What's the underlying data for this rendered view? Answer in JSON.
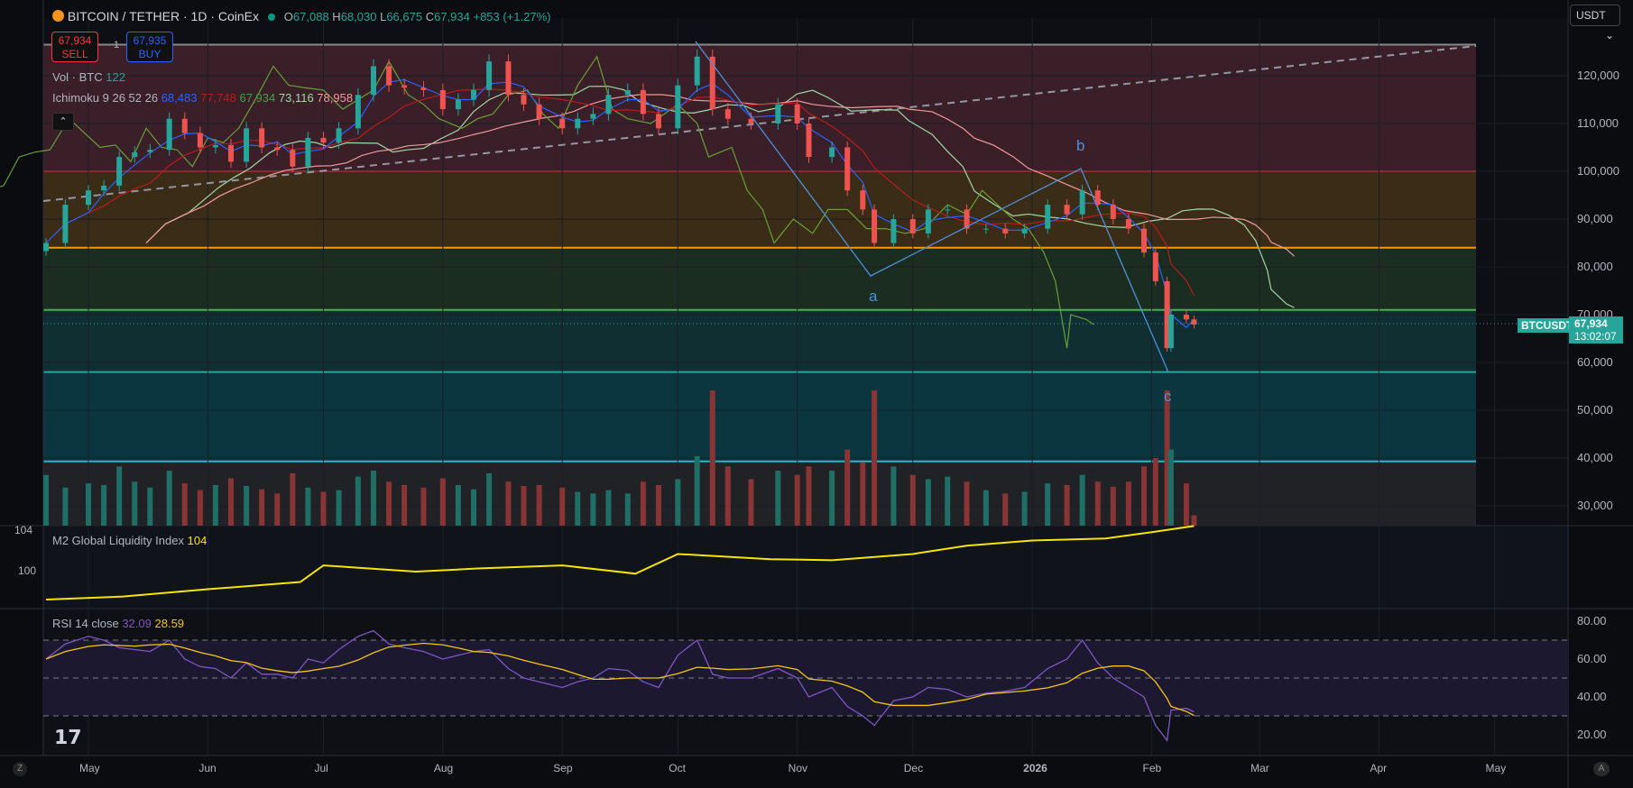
{
  "header": {
    "symbol": "BITCOIN / TETHER · 1D · CoinEx",
    "open_label": "O",
    "open": "67,088",
    "high_label": "H",
    "high": "68,030",
    "low_label": "L",
    "low": "66,675",
    "close_label": "C",
    "close": "67,934",
    "change": "+853 (+1.27%)"
  },
  "trade": {
    "sell_price": "67,934",
    "sell_label": "SELL",
    "spread": "1",
    "buy_price": "67,935",
    "buy_label": "BUY"
  },
  "legend": {
    "vol_label": "Vol · BTC",
    "vol_value": "122",
    "ichimoku_label": "Ichimoku 9 26 52 26",
    "ichi_values": [
      "68,483",
      "77,748",
      "67,934",
      "73,116",
      "78,958"
    ],
    "m2_label": "M2 Global Liquidity Index",
    "m2_value": "104",
    "rsi_label": "RSI 14 close",
    "rsi_value": "32.09",
    "rsi_ma_value": "28.59"
  },
  "currency": "USDT",
  "price_tag": {
    "symbol": "BTCUSDT",
    "price": "67,934",
    "countdown": "13:02:07"
  },
  "waves": [
    "a",
    "b",
    "c"
  ],
  "colors": {
    "up": "#26a69a",
    "down": "#ef5350",
    "m2": "#f5e50a",
    "rsi": "#7e57c2",
    "rsi_ma": "#f5c518",
    "conversion": "#2962ff",
    "base": "#b71c1c",
    "wave_lines": "#4f8fd6"
  },
  "chart_data": [
    {
      "type": "candlestick",
      "title": "BITCOIN / TETHER · 1D · CoinEx",
      "y_ticks": [
        "120,000",
        "110,000",
        "100,000",
        "90,000",
        "80,000",
        "70,000",
        "60,000",
        "50,000",
        "40,000",
        "30,000"
      ],
      "x_ticks": [
        "May",
        "Jun",
        "Jul",
        "Aug",
        "Sep",
        "Oct",
        "Nov",
        "Dec",
        "2026",
        "Feb",
        "Mar",
        "Apr",
        "May"
      ],
      "x_tick_dates": [
        "2025-05-01",
        "2025-06-01",
        "2025-07-01",
        "2025-08-01",
        "2025-09-01",
        "2025-10-01",
        "2025-11-01",
        "2025-12-01",
        "2026-01-01",
        "2026-02-01",
        "2026-03-01",
        "2026-04-01",
        "2026-05-01"
      ],
      "dates": [
        "2025-04-20",
        "2025-04-25",
        "2025-05-01",
        "2025-05-05",
        "2025-05-09",
        "2025-05-13",
        "2025-05-17",
        "2025-05-22",
        "2025-05-26",
        "2025-05-30",
        "2025-06-03",
        "2025-06-07",
        "2025-06-11",
        "2025-06-15",
        "2025-06-19",
        "2025-06-23",
        "2025-06-27",
        "2025-07-01",
        "2025-07-05",
        "2025-07-10",
        "2025-07-14",
        "2025-07-18",
        "2025-07-22",
        "2025-07-27",
        "2025-08-01",
        "2025-08-05",
        "2025-08-09",
        "2025-08-13",
        "2025-08-18",
        "2025-08-22",
        "2025-08-26",
        "2025-09-01",
        "2025-09-05",
        "2025-09-09",
        "2025-09-13",
        "2025-09-18",
        "2025-09-22",
        "2025-09-26",
        "2025-10-01",
        "2025-10-06",
        "2025-10-10",
        "2025-10-14",
        "2025-10-20",
        "2025-10-27",
        "2025-11-01",
        "2025-11-04",
        "2025-11-10",
        "2025-11-14",
        "2025-11-18",
        "2025-11-21",
        "2025-11-26",
        "2025-12-01",
        "2025-12-05",
        "2025-12-10",
        "2025-12-15",
        "2025-12-20",
        "2025-12-25",
        "2025-12-30",
        "2026-01-05",
        "2026-01-10",
        "2026-01-14",
        "2026-01-18",
        "2026-01-22",
        "2026-01-26",
        "2026-01-30",
        "2026-02-02",
        "2026-02-05",
        "2026-02-06",
        "2026-02-10",
        "2026-02-12"
      ],
      "close": [
        85000,
        93000,
        96000,
        97000,
        103000,
        104000,
        104500,
        111000,
        108000,
        105000,
        105500,
        102000,
        109000,
        105000,
        104500,
        101000,
        107000,
        106000,
        109000,
        116000,
        122000,
        118000,
        117500,
        117000,
        113000,
        115000,
        117000,
        123000,
        116000,
        114000,
        111000,
        109000,
        111000,
        112000,
        116000,
        117000,
        112000,
        109000,
        118000,
        124000,
        113000,
        111000,
        110000,
        114000,
        110000,
        103000,
        105000,
        96000,
        92000,
        85000,
        90000,
        87000,
        92000,
        92000,
        88000,
        88000,
        87000,
        88000,
        93000,
        91000,
        96000,
        93000,
        90000,
        88000,
        83000,
        77000,
        63000,
        70000,
        69000,
        67934
      ],
      "volume": [
        600,
        450,
        500,
        480,
        700,
        520,
        450,
        650,
        500,
        420,
        480,
        560,
        470,
        430,
        380,
        620,
        450,
        400,
        420,
        580,
        650,
        520,
        480,
        450,
        560,
        480,
        430,
        620,
        520,
        470,
        480,
        450,
        400,
        380,
        420,
        380,
        520,
        480,
        550,
        820,
        1600,
        700,
        550,
        650,
        600,
        700,
        650,
        900,
        750,
        1600,
        700,
        600,
        550,
        580,
        520,
        420,
        380,
        400,
        500,
        480,
        600,
        520,
        460,
        520,
        700,
        800,
        1600,
        900,
        500,
        122
      ],
      "rsi": [
        60,
        68,
        72,
        70,
        66,
        65,
        64,
        70,
        60,
        56,
        55,
        50,
        58,
        52,
        52,
        50,
        60,
        58,
        65,
        72,
        75,
        68,
        66,
        64,
        60,
        62,
        64,
        65,
        55,
        50,
        48,
        45,
        48,
        50,
        55,
        54,
        48,
        45,
        62,
        70,
        52,
        50,
        50,
        55,
        50,
        40,
        45,
        35,
        30,
        25,
        38,
        40,
        45,
        44,
        40,
        42,
        43,
        45,
        55,
        60,
        70,
        58,
        50,
        45,
        40,
        25,
        17,
        33,
        34,
        32.09
      ]
    },
    {
      "type": "line",
      "name": "M2 Global Liquidity Index",
      "y_ticks": [
        "104",
        "100"
      ],
      "dates": [
        "2025-04-20",
        "2025-05-10",
        "2025-06-01",
        "2025-06-25",
        "2025-07-01",
        "2025-07-25",
        "2025-08-10",
        "2025-09-01",
        "2025-09-20",
        "2025-10-01",
        "2025-10-25",
        "2025-11-10",
        "2025-12-01",
        "2025-12-15",
        "2026-01-01",
        "2026-01-20",
        "2026-02-01",
        "2026-02-12"
      ],
      "values": [
        97.3,
        97.6,
        98.3,
        99.0,
        100.6,
        100.0,
        100.3,
        100.6,
        99.8,
        101.7,
        101.2,
        101.1,
        101.7,
        102.5,
        103.0,
        103.2,
        103.8,
        104.4
      ]
    },
    {
      "type": "line",
      "name": "RSI 14 close",
      "y_ticks": [
        "80.00",
        "60.00",
        "40.00",
        "20.00"
      ],
      "bands": [
        70,
        50,
        30
      ],
      "ylim": [
        13,
        85
      ]
    }
  ]
}
